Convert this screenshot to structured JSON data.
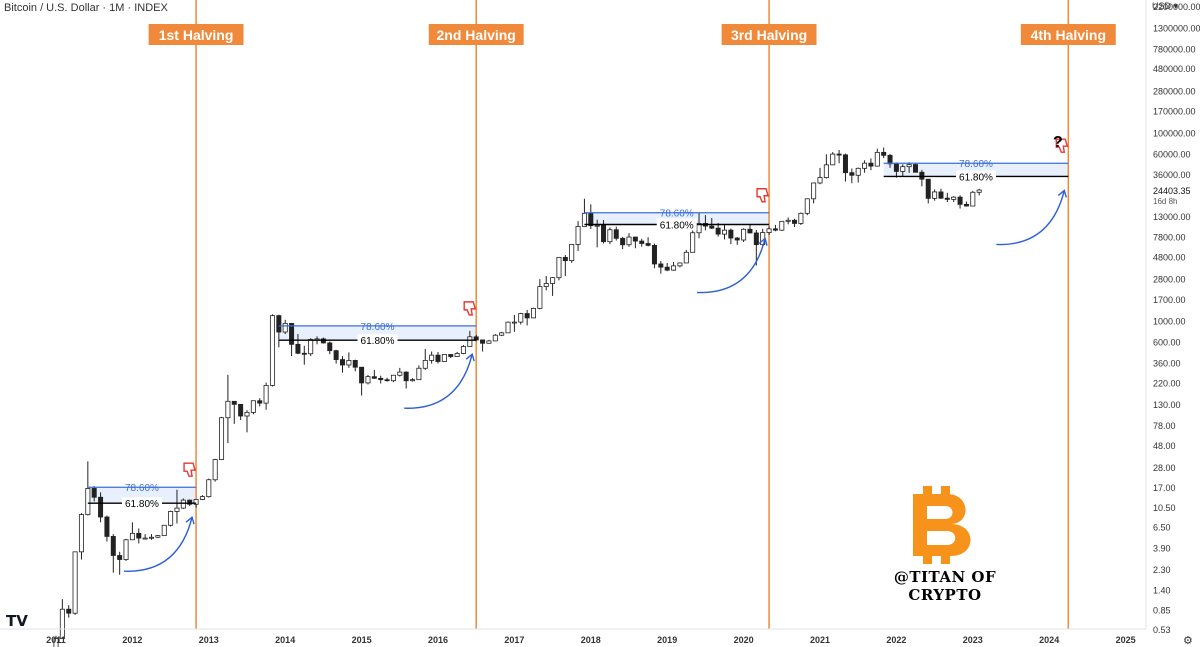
{
  "header": {
    "title": "Bitcoin / U.S. Dollar · 1M · INDEX"
  },
  "currency_label": "USD",
  "countdown": "16d 8h",
  "last_price": "24403.35",
  "watermark": "@TITAN OF CRYPTO",
  "logo": "TV",
  "settings_icon": "gear-icon",
  "colors": {
    "halving": "#f0893a",
    "fib_786": "#3b6fd8",
    "fib_618": "#000000",
    "fib_fill": "#e8f0fd",
    "arrow": "#2b5fd6",
    "candle_up": "#ffffff",
    "candle_down": "#222222",
    "thumb": "#e53935",
    "btc": "#f7931a"
  },
  "chart_data": {
    "type": "candlestick",
    "title": "Bitcoin / U.S. Dollar · 1M · INDEX",
    "yscale": "log",
    "ylim": [
      0.53,
      2200000
    ],
    "y_ticks": [
      "2200000.00",
      "1300000.00",
      "780000.00",
      "480000.00",
      "280000.00",
      "170000.00",
      "100000.00",
      "60000.00",
      "36000.00",
      "13000.00",
      "7800.00",
      "4800.00",
      "2800.00",
      "1700.00",
      "1000.00",
      "600.00",
      "360.00",
      "220.00",
      "130.00",
      "78.00",
      "48.00",
      "28.00",
      "17.00",
      "10.50",
      "6.50",
      "3.90",
      "2.30",
      "1.40",
      "0.85",
      "0.53"
    ],
    "x_ticks": [
      "2011",
      "2012",
      "2013",
      "2014",
      "2015",
      "2016",
      "2017",
      "2018",
      "2019",
      "2020",
      "2021",
      "2022",
      "2023",
      "2024",
      "2025"
    ],
    "halvings": [
      {
        "label": "1st Halving",
        "date": "2012-11"
      },
      {
        "label": "2nd Halving",
        "date": "2016-07"
      },
      {
        "label": "3rd Halving",
        "date": "2020-05"
      },
      {
        "label": "4th Halving",
        "date": "2024-04"
      }
    ],
    "fib_zones": [
      {
        "start": "2011-06",
        "end": "2012-11",
        "level_786": 17,
        "level_618": 11.5,
        "label_786": "78.60%",
        "label_618": "61.80%"
      },
      {
        "start": "2013-12",
        "end": "2016-07",
        "level_786": 880,
        "level_618": 620,
        "label_786": "78.60%",
        "label_618": "61.80%"
      },
      {
        "start": "2017-12",
        "end": "2020-05",
        "level_786": 14000,
        "level_618": 10500,
        "label_786": "78.60%",
        "label_618": "61.80%"
      },
      {
        "start": "2021-11",
        "end": "2024-04",
        "level_786": 47000,
        "level_618": 34000,
        "label_786": "78.60%",
        "label_618": "61.80%"
      }
    ],
    "annotations": [
      {
        "text": "?",
        "near": "2023-07"
      }
    ],
    "candles": [
      {
        "t": "2011-01",
        "o": 0.3,
        "h": 0.45,
        "l": 0.29,
        "c": 0.42
      },
      {
        "t": "2011-02",
        "o": 0.42,
        "h": 1.1,
        "l": 0.42,
        "c": 0.86
      },
      {
        "t": "2011-03",
        "o": 0.86,
        "h": 0.95,
        "l": 0.7,
        "c": 0.78
      },
      {
        "t": "2011-04",
        "o": 0.78,
        "h": 3.5,
        "l": 0.75,
        "c": 3.5
      },
      {
        "t": "2011-05",
        "o": 3.5,
        "h": 9,
        "l": 2.9,
        "c": 8.7
      },
      {
        "t": "2011-06",
        "o": 8.7,
        "h": 32,
        "l": 8.5,
        "c": 16.5
      },
      {
        "t": "2011-07",
        "o": 16.5,
        "h": 17.5,
        "l": 12,
        "c": 13.3
      },
      {
        "t": "2011-08",
        "o": 13.3,
        "h": 15,
        "l": 7.2,
        "c": 8.2
      },
      {
        "t": "2011-09",
        "o": 8.2,
        "h": 8.5,
        "l": 4.5,
        "c": 5.1
      },
      {
        "t": "2011-10",
        "o": 5.1,
        "h": 5.4,
        "l": 2.1,
        "c": 3.2
      },
      {
        "t": "2011-11",
        "o": 3.2,
        "h": 3.5,
        "l": 2.0,
        "c": 2.9
      },
      {
        "t": "2011-12",
        "o": 2.9,
        "h": 4.8,
        "l": 2.8,
        "c": 4.7
      },
      {
        "t": "2012-01",
        "o": 4.7,
        "h": 7.2,
        "l": 4.7,
        "c": 5.5
      },
      {
        "t": "2012-02",
        "o": 5.5,
        "h": 6.2,
        "l": 4.3,
        "c": 4.9
      },
      {
        "t": "2012-03",
        "o": 4.9,
        "h": 5.4,
        "l": 4.8,
        "c": 4.9
      },
      {
        "t": "2012-04",
        "o": 4.9,
        "h": 5.4,
        "l": 4.7,
        "c": 5.0
      },
      {
        "t": "2012-05",
        "o": 5.0,
        "h": 5.3,
        "l": 4.9,
        "c": 5.2
      },
      {
        "t": "2012-06",
        "o": 5.2,
        "h": 6.7,
        "l": 5.2,
        "c": 6.7
      },
      {
        "t": "2012-07",
        "o": 6.7,
        "h": 9.6,
        "l": 6.5,
        "c": 9.4
      },
      {
        "t": "2012-08",
        "o": 9.4,
        "h": 16,
        "l": 7,
        "c": 10.2
      },
      {
        "t": "2012-09",
        "o": 10.2,
        "h": 12.9,
        "l": 10,
        "c": 12.4
      },
      {
        "t": "2012-10",
        "o": 12.4,
        "h": 12.6,
        "l": 10.7,
        "c": 11.2
      },
      {
        "t": "2012-11",
        "o": 11.2,
        "h": 12.8,
        "l": 10.3,
        "c": 12.6
      },
      {
        "t": "2012-12",
        "o": 12.6,
        "h": 14,
        "l": 12.4,
        "c": 13.5
      },
      {
        "t": "2013-01",
        "o": 13.5,
        "h": 21,
        "l": 13.2,
        "c": 20.4
      },
      {
        "t": "2013-02",
        "o": 20.4,
        "h": 34,
        "l": 19.5,
        "c": 33.4
      },
      {
        "t": "2013-03",
        "o": 33.4,
        "h": 95,
        "l": 33,
        "c": 93
      },
      {
        "t": "2013-04",
        "o": 93,
        "h": 266,
        "l": 50,
        "c": 139
      },
      {
        "t": "2013-05",
        "o": 139,
        "h": 140,
        "l": 80,
        "c": 129
      },
      {
        "t": "2013-06",
        "o": 129,
        "h": 130,
        "l": 88,
        "c": 97
      },
      {
        "t": "2013-07",
        "o": 97,
        "h": 112,
        "l": 65,
        "c": 106
      },
      {
        "t": "2013-08",
        "o": 106,
        "h": 140,
        "l": 101,
        "c": 141
      },
      {
        "t": "2013-09",
        "o": 141,
        "h": 150,
        "l": 123,
        "c": 133
      },
      {
        "t": "2013-10",
        "o": 133,
        "h": 220,
        "l": 113,
        "c": 205
      },
      {
        "t": "2013-11",
        "o": 205,
        "h": 1165,
        "l": 200,
        "c": 1130
      },
      {
        "t": "2013-12",
        "o": 1130,
        "h": 1160,
        "l": 520,
        "c": 757
      },
      {
        "t": "2014-01",
        "o": 757,
        "h": 1020,
        "l": 720,
        "c": 935
      },
      {
        "t": "2014-02",
        "o": 935,
        "h": 940,
        "l": 420,
        "c": 560
      },
      {
        "t": "2014-03",
        "o": 560,
        "h": 720,
        "l": 440,
        "c": 450
      },
      {
        "t": "2014-04",
        "o": 450,
        "h": 540,
        "l": 340,
        "c": 445
      },
      {
        "t": "2014-05",
        "o": 445,
        "h": 650,
        "l": 420,
        "c": 630
      },
      {
        "t": "2014-06",
        "o": 630,
        "h": 680,
        "l": 560,
        "c": 640
      },
      {
        "t": "2014-07",
        "o": 640,
        "h": 660,
        "l": 570,
        "c": 580
      },
      {
        "t": "2014-08",
        "o": 580,
        "h": 600,
        "l": 440,
        "c": 480
      },
      {
        "t": "2014-09",
        "o": 480,
        "h": 490,
        "l": 350,
        "c": 386
      },
      {
        "t": "2014-10",
        "o": 386,
        "h": 420,
        "l": 280,
        "c": 338
      },
      {
        "t": "2014-11",
        "o": 338,
        "h": 460,
        "l": 315,
        "c": 378
      },
      {
        "t": "2014-12",
        "o": 378,
        "h": 385,
        "l": 290,
        "c": 320
      },
      {
        "t": "2015-01",
        "o": 320,
        "h": 320,
        "l": 160,
        "c": 218
      },
      {
        "t": "2015-02",
        "o": 218,
        "h": 265,
        "l": 210,
        "c": 254
      },
      {
        "t": "2015-03",
        "o": 254,
        "h": 300,
        "l": 240,
        "c": 244
      },
      {
        "t": "2015-04",
        "o": 244,
        "h": 260,
        "l": 215,
        "c": 236
      },
      {
        "t": "2015-05",
        "o": 236,
        "h": 248,
        "l": 225,
        "c": 230
      },
      {
        "t": "2015-06",
        "o": 230,
        "h": 265,
        "l": 222,
        "c": 263
      },
      {
        "t": "2015-07",
        "o": 263,
        "h": 315,
        "l": 255,
        "c": 284
      },
      {
        "t": "2015-08",
        "o": 284,
        "h": 290,
        "l": 190,
        "c": 230
      },
      {
        "t": "2015-09",
        "o": 230,
        "h": 245,
        "l": 225,
        "c": 236
      },
      {
        "t": "2015-10",
        "o": 236,
        "h": 335,
        "l": 235,
        "c": 312
      },
      {
        "t": "2015-11",
        "o": 312,
        "h": 500,
        "l": 300,
        "c": 378
      },
      {
        "t": "2015-12",
        "o": 378,
        "h": 470,
        "l": 350,
        "c": 430
      },
      {
        "t": "2016-01",
        "o": 430,
        "h": 465,
        "l": 350,
        "c": 368
      },
      {
        "t": "2016-02",
        "o": 368,
        "h": 440,
        "l": 365,
        "c": 437
      },
      {
        "t": "2016-03",
        "o": 437,
        "h": 440,
        "l": 400,
        "c": 416
      },
      {
        "t": "2016-04",
        "o": 416,
        "h": 465,
        "l": 412,
        "c": 448
      },
      {
        "t": "2016-05",
        "o": 448,
        "h": 550,
        "l": 440,
        "c": 531
      },
      {
        "t": "2016-06",
        "o": 531,
        "h": 780,
        "l": 530,
        "c": 673
      },
      {
        "t": "2016-07",
        "o": 673,
        "h": 705,
        "l": 605,
        "c": 624
      },
      {
        "t": "2016-08",
        "o": 624,
        "h": 630,
        "l": 470,
        "c": 575
      },
      {
        "t": "2016-09",
        "o": 575,
        "h": 625,
        "l": 570,
        "c": 609
      },
      {
        "t": "2016-10",
        "o": 609,
        "h": 720,
        "l": 605,
        "c": 700
      },
      {
        "t": "2016-11",
        "o": 700,
        "h": 760,
        "l": 685,
        "c": 742
      },
      {
        "t": "2016-12",
        "o": 742,
        "h": 980,
        "l": 742,
        "c": 963
      },
      {
        "t": "2017-01",
        "o": 963,
        "h": 1150,
        "l": 760,
        "c": 965
      },
      {
        "t": "2017-02",
        "o": 965,
        "h": 1210,
        "l": 910,
        "c": 1190
      },
      {
        "t": "2017-03",
        "o": 1190,
        "h": 1300,
        "l": 890,
        "c": 1070
      },
      {
        "t": "2017-04",
        "o": 1070,
        "h": 1370,
        "l": 1060,
        "c": 1350
      },
      {
        "t": "2017-05",
        "o": 1350,
        "h": 2760,
        "l": 1320,
        "c": 2300
      },
      {
        "t": "2017-06",
        "o": 2300,
        "h": 2980,
        "l": 2100,
        "c": 2480
      },
      {
        "t": "2017-07",
        "o": 2480,
        "h": 2900,
        "l": 1830,
        "c": 2860
      },
      {
        "t": "2017-08",
        "o": 2860,
        "h": 4750,
        "l": 2680,
        "c": 4700
      },
      {
        "t": "2017-09",
        "o": 4700,
        "h": 4980,
        "l": 2970,
        "c": 4340
      },
      {
        "t": "2017-10",
        "o": 4340,
        "h": 6470,
        "l": 4110,
        "c": 6450
      },
      {
        "t": "2017-11",
        "o": 6450,
        "h": 11400,
        "l": 5500,
        "c": 10000
      },
      {
        "t": "2017-12",
        "o": 10000,
        "h": 19700,
        "l": 10000,
        "c": 13800
      },
      {
        "t": "2018-01",
        "o": 13800,
        "h": 17200,
        "l": 9400,
        "c": 10200
      },
      {
        "t": "2018-02",
        "o": 10200,
        "h": 11800,
        "l": 6000,
        "c": 10300
      },
      {
        "t": "2018-03",
        "o": 10300,
        "h": 11700,
        "l": 6600,
        "c": 6900
      },
      {
        "t": "2018-04",
        "o": 6900,
        "h": 9750,
        "l": 6500,
        "c": 9240
      },
      {
        "t": "2018-05",
        "o": 9240,
        "h": 9950,
        "l": 7100,
        "c": 7490
      },
      {
        "t": "2018-06",
        "o": 7490,
        "h": 7760,
        "l": 5750,
        "c": 6400
      },
      {
        "t": "2018-07",
        "o": 6400,
        "h": 8500,
        "l": 6100,
        "c": 7730
      },
      {
        "t": "2018-08",
        "o": 7730,
        "h": 7750,
        "l": 5880,
        "c": 7000
      },
      {
        "t": "2018-09",
        "o": 7000,
        "h": 7400,
        "l": 6100,
        "c": 6600
      },
      {
        "t": "2018-10",
        "o": 6600,
        "h": 7700,
        "l": 6150,
        "c": 6300
      },
      {
        "t": "2018-11",
        "o": 6300,
        "h": 6600,
        "l": 3600,
        "c": 4000
      },
      {
        "t": "2018-12",
        "o": 4000,
        "h": 4300,
        "l": 3150,
        "c": 3700
      },
      {
        "t": "2019-01",
        "o": 3700,
        "h": 4100,
        "l": 3350,
        "c": 3440
      },
      {
        "t": "2019-02",
        "o": 3440,
        "h": 4200,
        "l": 3380,
        "c": 3820
      },
      {
        "t": "2019-03",
        "o": 3820,
        "h": 4150,
        "l": 3680,
        "c": 4100
      },
      {
        "t": "2019-04",
        "o": 4100,
        "h": 5650,
        "l": 4100,
        "c": 5320
      },
      {
        "t": "2019-05",
        "o": 5320,
        "h": 9100,
        "l": 5300,
        "c": 8580
      },
      {
        "t": "2019-06",
        "o": 8580,
        "h": 13900,
        "l": 7500,
        "c": 10800
      },
      {
        "t": "2019-07",
        "o": 10800,
        "h": 13200,
        "l": 9100,
        "c": 10100
      },
      {
        "t": "2019-08",
        "o": 10100,
        "h": 12300,
        "l": 9400,
        "c": 9600
      },
      {
        "t": "2019-09",
        "o": 9600,
        "h": 10900,
        "l": 7800,
        "c": 8300
      },
      {
        "t": "2019-10",
        "o": 8300,
        "h": 10400,
        "l": 7300,
        "c": 9150
      },
      {
        "t": "2019-11",
        "o": 9150,
        "h": 9500,
        "l": 6500,
        "c": 7540
      },
      {
        "t": "2019-12",
        "o": 7540,
        "h": 7750,
        "l": 6400,
        "c": 7190
      },
      {
        "t": "2020-01",
        "o": 7190,
        "h": 9580,
        "l": 6860,
        "c": 9350
      },
      {
        "t": "2020-02",
        "o": 9350,
        "h": 10500,
        "l": 8450,
        "c": 8540
      },
      {
        "t": "2020-03",
        "o": 8540,
        "h": 9180,
        "l": 3850,
        "c": 6420
      },
      {
        "t": "2020-04",
        "o": 6420,
        "h": 9460,
        "l": 6150,
        "c": 8630
      },
      {
        "t": "2020-05",
        "o": 8630,
        "h": 10070,
        "l": 8120,
        "c": 9450
      },
      {
        "t": "2020-06",
        "o": 9450,
        "h": 10400,
        "l": 8900,
        "c": 9140
      },
      {
        "t": "2020-07",
        "o": 9140,
        "h": 11450,
        "l": 8990,
        "c": 11350
      },
      {
        "t": "2020-08",
        "o": 11350,
        "h": 12480,
        "l": 10550,
        "c": 11650
      },
      {
        "t": "2020-09",
        "o": 11650,
        "h": 12070,
        "l": 9880,
        "c": 10780
      },
      {
        "t": "2020-10",
        "o": 10780,
        "h": 14100,
        "l": 10370,
        "c": 13800
      },
      {
        "t": "2020-11",
        "o": 13800,
        "h": 19900,
        "l": 13200,
        "c": 19700
      },
      {
        "t": "2020-12",
        "o": 19700,
        "h": 29300,
        "l": 17600,
        "c": 29000
      },
      {
        "t": "2021-01",
        "o": 29000,
        "h": 41900,
        "l": 28100,
        "c": 33100
      },
      {
        "t": "2021-02",
        "o": 33100,
        "h": 58400,
        "l": 32300,
        "c": 45200
      },
      {
        "t": "2021-03",
        "o": 45200,
        "h": 61800,
        "l": 44900,
        "c": 58800
      },
      {
        "t": "2021-04",
        "o": 58800,
        "h": 64900,
        "l": 47000,
        "c": 57700
      },
      {
        "t": "2021-05",
        "o": 57700,
        "h": 59600,
        "l": 30000,
        "c": 37300
      },
      {
        "t": "2021-06",
        "o": 37300,
        "h": 41300,
        "l": 28800,
        "c": 35000
      },
      {
        "t": "2021-07",
        "o": 35000,
        "h": 42300,
        "l": 29300,
        "c": 41500
      },
      {
        "t": "2021-08",
        "o": 41500,
        "h": 50500,
        "l": 37300,
        "c": 47100
      },
      {
        "t": "2021-09",
        "o": 47100,
        "h": 52900,
        "l": 39600,
        "c": 43800
      },
      {
        "t": "2021-10",
        "o": 43800,
        "h": 67000,
        "l": 43300,
        "c": 61300
      },
      {
        "t": "2021-11",
        "o": 61300,
        "h": 69000,
        "l": 53300,
        "c": 57000
      },
      {
        "t": "2021-12",
        "o": 57000,
        "h": 59100,
        "l": 42000,
        "c": 46300
      },
      {
        "t": "2022-01",
        "o": 46300,
        "h": 47900,
        "l": 33000,
        "c": 38500
      },
      {
        "t": "2022-02",
        "o": 38500,
        "h": 45800,
        "l": 34300,
        "c": 43200
      },
      {
        "t": "2022-03",
        "o": 43200,
        "h": 48200,
        "l": 37200,
        "c": 45500
      },
      {
        "t": "2022-04",
        "o": 45500,
        "h": 47400,
        "l": 37600,
        "c": 37700
      },
      {
        "t": "2022-05",
        "o": 37700,
        "h": 40000,
        "l": 26700,
        "c": 31800
      },
      {
        "t": "2022-06",
        "o": 31800,
        "h": 31900,
        "l": 17600,
        "c": 19900
      },
      {
        "t": "2022-07",
        "o": 19900,
        "h": 24700,
        "l": 18800,
        "c": 23300
      },
      {
        "t": "2022-08",
        "o": 23300,
        "h": 25200,
        "l": 19600,
        "c": 20000
      },
      {
        "t": "2022-09",
        "o": 20000,
        "h": 22800,
        "l": 18200,
        "c": 19400
      },
      {
        "t": "2022-10",
        "o": 19400,
        "h": 21000,
        "l": 18200,
        "c": 20500
      },
      {
        "t": "2022-11",
        "o": 20500,
        "h": 21500,
        "l": 15500,
        "c": 17200
      },
      {
        "t": "2022-12",
        "o": 17200,
        "h": 18400,
        "l": 16300,
        "c": 16500
      },
      {
        "t": "2023-01",
        "o": 16500,
        "h": 23900,
        "l": 16500,
        "c": 23100
      },
      {
        "t": "2023-02",
        "o": 23100,
        "h": 25200,
        "l": 21400,
        "c": 24403
      }
    ]
  }
}
